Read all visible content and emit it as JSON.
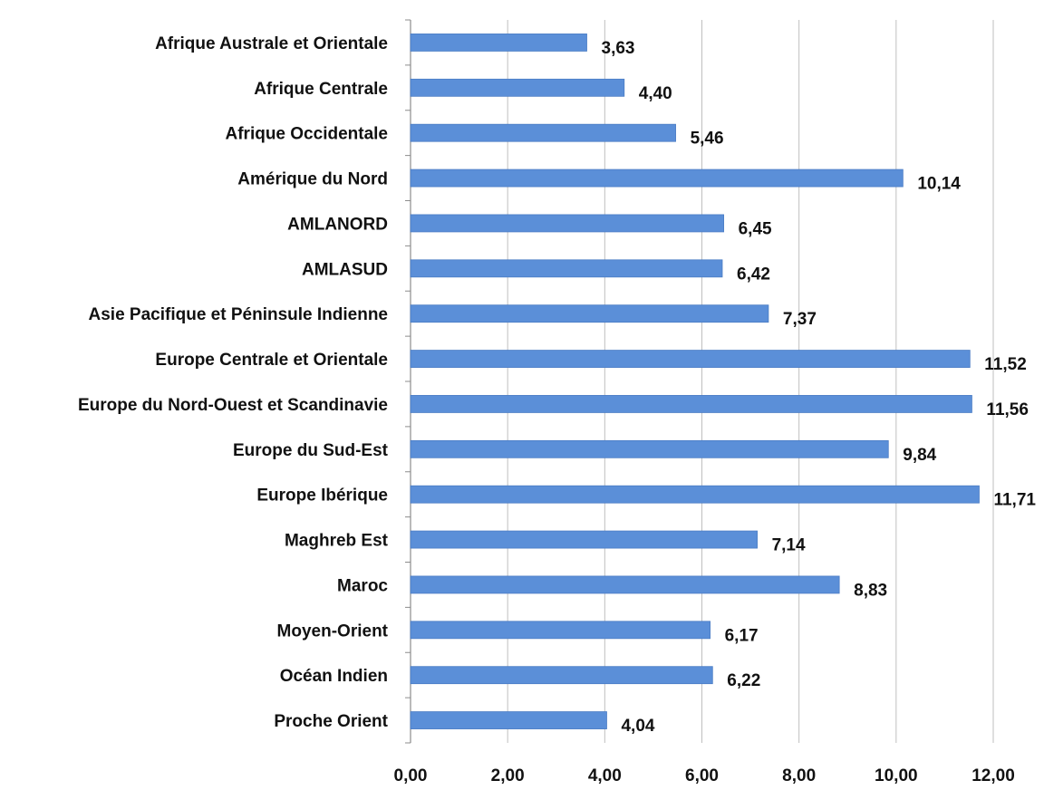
{
  "chart_data": {
    "type": "bar",
    "orientation": "horizontal",
    "title": "",
    "xlabel": "",
    "ylabel": "",
    "categories": [
      "Afrique Australe et Orientale",
      "Afrique Centrale",
      "Afrique Occidentale",
      "Amérique du Nord",
      "AMLANORD",
      "AMLASUD",
      "Asie Pacifique et Péninsule Indienne",
      "Europe Centrale et Orientale",
      "Europe du Nord-Ouest et Scandinavie",
      "Europe du Sud-Est",
      "Europe Ibérique",
      "Maghreb Est",
      "Maroc",
      "Moyen-Orient",
      "Océan Indien",
      "Proche Orient"
    ],
    "values": [
      3.63,
      4.4,
      5.46,
      10.14,
      6.45,
      6.42,
      7.37,
      11.52,
      11.56,
      9.84,
      11.71,
      7.14,
      8.83,
      6.17,
      6.22,
      4.04
    ],
    "value_labels": [
      "3,63",
      "4,40",
      "5,46",
      "10,14",
      "6,45",
      "6,42",
      "7,37",
      "11,52",
      "11,56",
      "9,84",
      "11,71",
      "7,14",
      "8,83",
      "6,17",
      "6,22",
      "4,04"
    ],
    "xlim": [
      0,
      12
    ],
    "x_ticks": [
      "0,00",
      "2,00",
      "4,00",
      "6,00",
      "8,00",
      "10,00",
      "12,00"
    ],
    "grid": "vertical",
    "legend": "none",
    "colors": {
      "bar": "#5b8fd8",
      "bar_edge": "#4a7cc4",
      "grid": "#bfbfbf",
      "text": "#111111"
    }
  }
}
